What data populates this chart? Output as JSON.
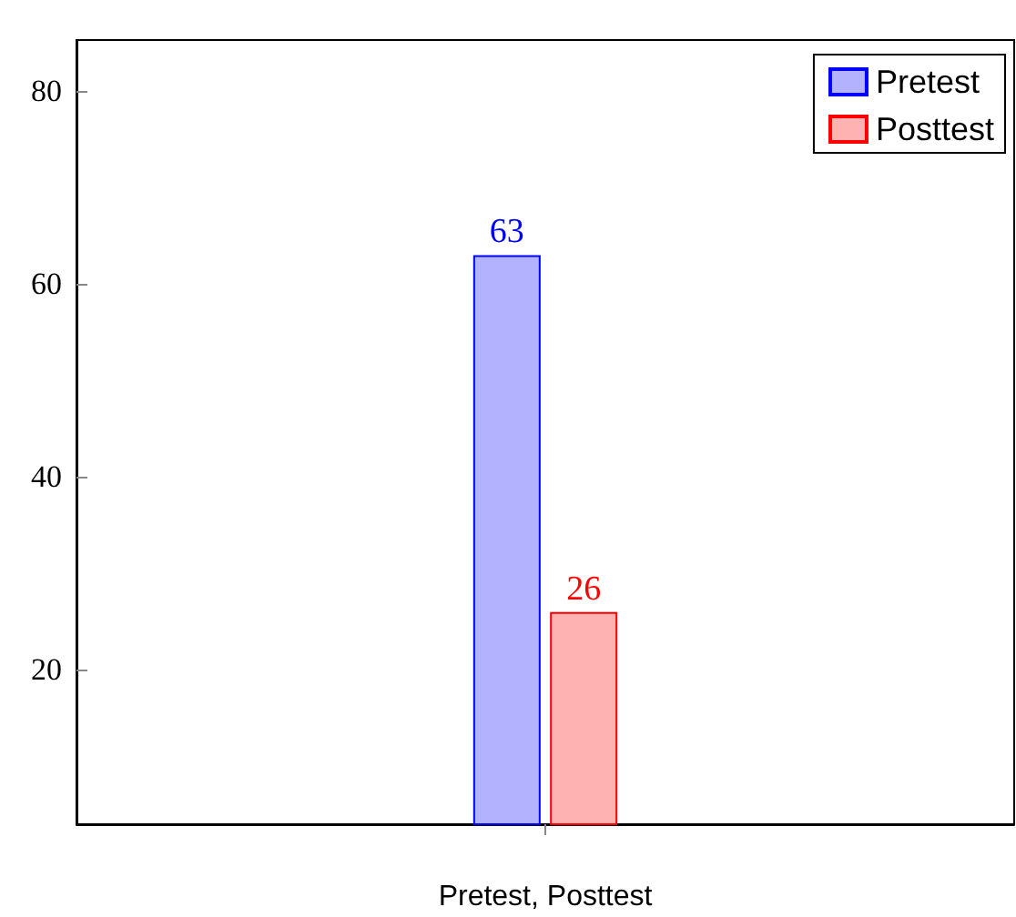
{
  "chart_data": {
    "type": "bar",
    "categories": [
      "Pretest, Posttest"
    ],
    "series": [
      {
        "name": "Pretest",
        "color": "#0000ff",
        "values": [
          63
        ]
      },
      {
        "name": "Posttest",
        "color": "#ff0000",
        "values": [
          26
        ]
      }
    ],
    "ylim": [
      4,
      85.3
    ],
    "yticks": [
      20,
      40,
      60,
      80
    ],
    "grid": false,
    "legend": "top right",
    "data_labels": true
  }
}
